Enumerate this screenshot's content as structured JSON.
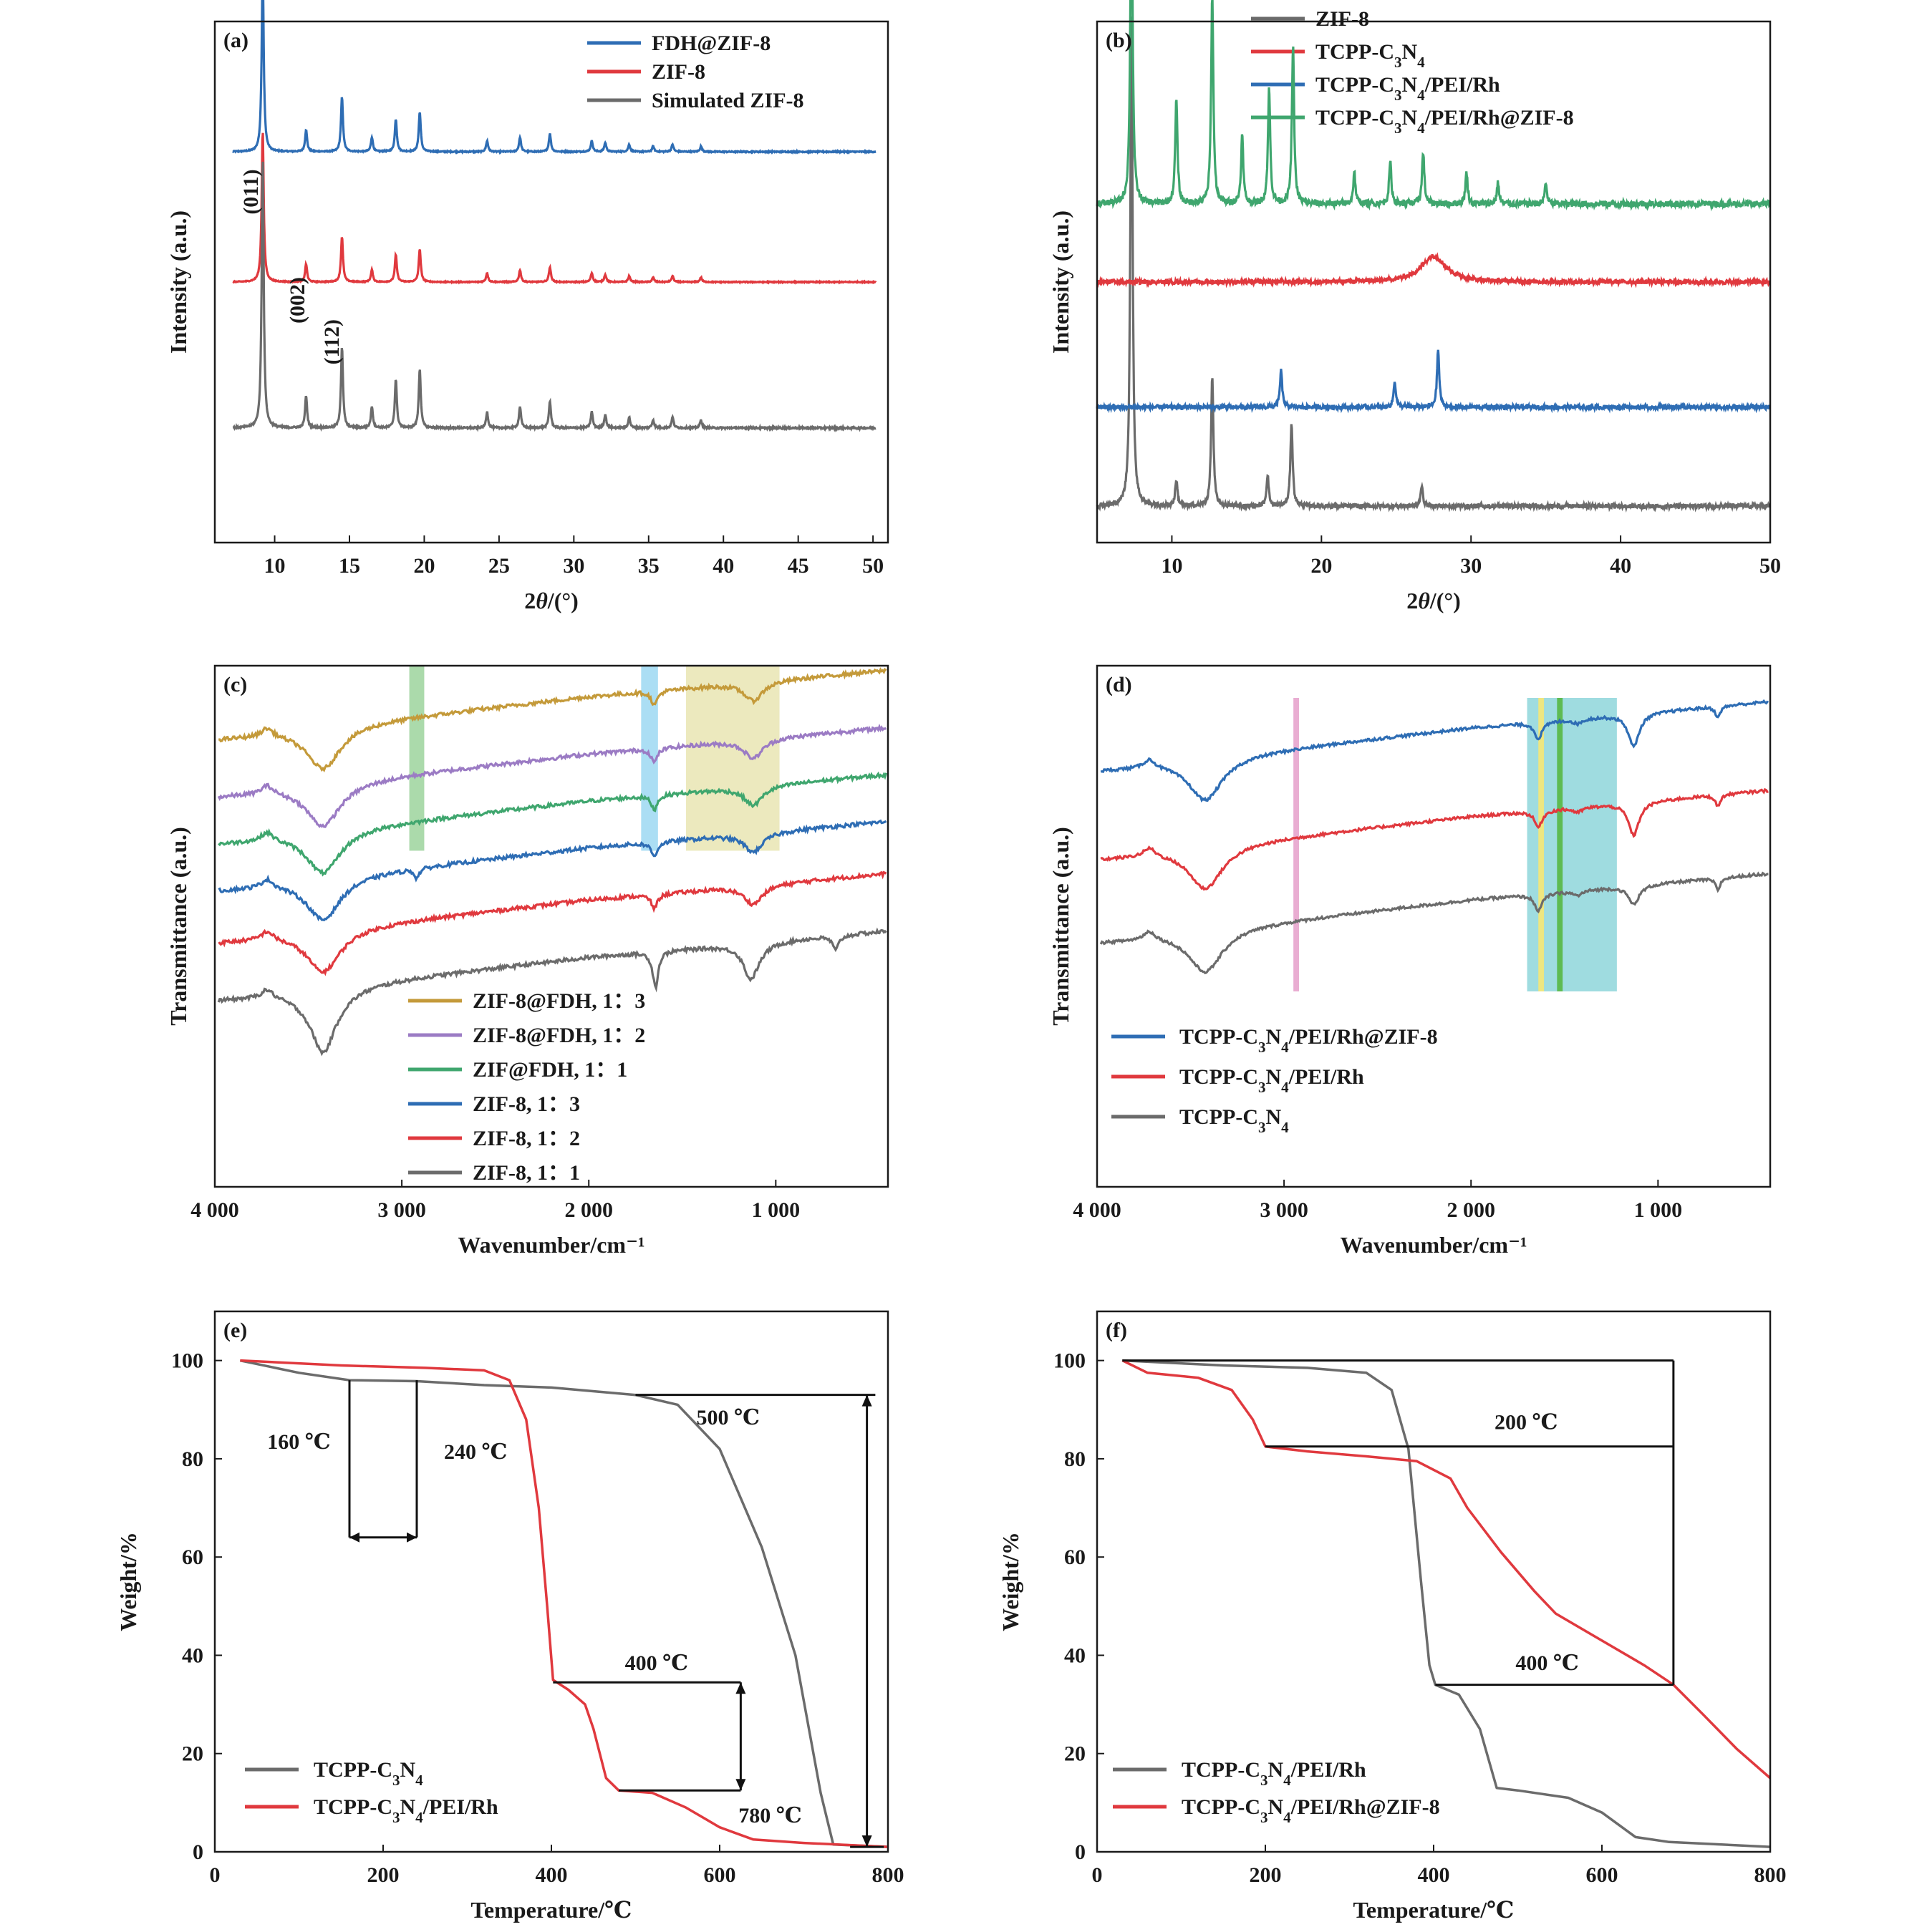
{
  "colors": {
    "blue": "#2e6db4",
    "red": "#e0393e",
    "gray": "#6b6b6b",
    "green": "#3fa66e",
    "gold": "#c49a3a",
    "purple": "#9b7bc4",
    "band_green": "#8fce8f",
    "band_blue": "#8fd3f0",
    "band_yellow": "#e6e2a8",
    "band_pink": "#e8a9d0",
    "band_teal": "#7fd0d6",
    "line_yellow": "#f2e67a",
    "line_green": "#5bb84a"
  },
  "chart_data": [
    {
      "panel": "(a)",
      "type": "line",
      "xlabel": "2θ/(°)",
      "ylabel": "Intensity (a.u.)",
      "xlim": [
        6,
        51
      ],
      "xticks": [
        10,
        15,
        20,
        25,
        30,
        35,
        40,
        45,
        50
      ],
      "peaks": [
        [
          9.2,
          1.0
        ],
        [
          12.1,
          0.12
        ],
        [
          14.5,
          0.3
        ],
        [
          16.5,
          0.08
        ],
        [
          18.1,
          0.18
        ],
        [
          19.7,
          0.22
        ],
        [
          24.2,
          0.06
        ],
        [
          26.4,
          0.08
        ],
        [
          28.4,
          0.1
        ],
        [
          31.2,
          0.06
        ],
        [
          32.1,
          0.05
        ],
        [
          33.7,
          0.04
        ],
        [
          35.3,
          0.03
        ],
        [
          36.6,
          0.04
        ],
        [
          38.5,
          0.03
        ]
      ],
      "series": [
        {
          "name": "FDH@ZIF-8",
          "color": "blue",
          "baseline": 0.25,
          "scale": 0.35
        },
        {
          "name": "ZIF-8",
          "color": "red",
          "baseline": 0.5,
          "scale": 0.29
        },
        {
          "name": "Simulated ZIF-8",
          "color": "gray",
          "baseline": 0.78,
          "scale": 0.52
        }
      ],
      "annotations": [
        {
          "text": "(011)",
          "x": 8.4,
          "y": 0.17
        },
        {
          "text": "(002)",
          "x": 11.5,
          "y": 0.3
        },
        {
          "text": "(112)",
          "x": 13.8,
          "y": 0.35
        }
      ]
    },
    {
      "panel": "(b)",
      "type": "line",
      "xlabel": "2θ/(°)",
      "ylabel": "Intensity (a.u.)",
      "xlim": [
        5,
        50
      ],
      "xticks": [
        10,
        20,
        30,
        40,
        50
      ],
      "series": [
        {
          "name": "ZIF-8",
          "color": "gray",
          "baseline": 0.93,
          "peaks": [
            [
              7.3,
              0.95
            ],
            [
              10.3,
              0.05
            ],
            [
              12.7,
              0.25
            ],
            [
              16.4,
              0.06
            ],
            [
              18.0,
              0.16
            ],
            [
              26.7,
              0.04
            ]
          ]
        },
        {
          "name": "TCPP-C3N4",
          "color": "red",
          "baseline": 0.5,
          "peaks": [
            [
              27.5,
              0.05
            ]
          ]
        },
        {
          "name": "TCPP-C3N4/PEI/Rh",
          "color": "blue",
          "baseline": 0.74,
          "peaks": [
            [
              17.3,
              0.07
            ],
            [
              24.9,
              0.05
            ],
            [
              27.8,
              0.11
            ]
          ]
        },
        {
          "name": "TCPP-C3N4/PEI/Rh@ZIF-8",
          "color": "green",
          "baseline": 0.35,
          "peaks": [
            [
              7.3,
              0.65
            ],
            [
              10.3,
              0.2
            ],
            [
              12.7,
              0.4
            ],
            [
              14.7,
              0.13
            ],
            [
              16.5,
              0.22
            ],
            [
              18.1,
              0.3
            ],
            [
              22.2,
              0.06
            ],
            [
              24.6,
              0.08
            ],
            [
              26.8,
              0.1
            ],
            [
              29.7,
              0.06
            ],
            [
              31.8,
              0.04
            ],
            [
              35.0,
              0.04
            ]
          ]
        }
      ]
    },
    {
      "panel": "(c)",
      "type": "line",
      "xlabel": "Wavenumber/cm⁻¹",
      "ylabel": "Transmittance (a.u.)",
      "xlim": [
        4000,
        400
      ],
      "xticks": [
        4000,
        3000,
        2000,
        1000
      ],
      "xticklabels": [
        "4 000",
        "3 000",
        "2 000",
        "1 000"
      ],
      "series": [
        {
          "name": "ZIF-8@FDH, 1：3",
          "color": "gold",
          "baseline": 0.14
        },
        {
          "name": "ZIF-8@FDH, 1：2",
          "color": "purple",
          "baseline": 0.25
        },
        {
          "name": "ZIF@FDH, 1：1",
          "color": "green",
          "baseline": 0.34
        },
        {
          "name": "ZIF-8, 1：3",
          "color": "blue",
          "baseline": 0.43
        },
        {
          "name": "ZIF-8, 1：2",
          "color": "red",
          "baseline": 0.53
        },
        {
          "name": "ZIF-8, 1：1",
          "color": "gray",
          "baseline": 0.64
        }
      ],
      "bands": [
        {
          "from": 2960,
          "to": 2880,
          "color": "band_green"
        },
        {
          "from": 1720,
          "to": 1630,
          "color": "band_blue"
        },
        {
          "from": 1480,
          "to": 980,
          "color": "band_yellow"
        }
      ]
    },
    {
      "panel": "(d)",
      "type": "line",
      "xlabel": "Wavenumber/cm⁻¹",
      "ylabel": "Transmittance (a.u.)",
      "xlim": [
        4000,
        400
      ],
      "xticks": [
        4000,
        3000,
        2000,
        1000
      ],
      "xticklabels": [
        "4 000",
        "3 000",
        "2 000",
        "1 000"
      ],
      "series": [
        {
          "name": "TCPP-C3N4/PEI/Rh@ZIF-8",
          "color": "blue",
          "baseline": 0.2
        },
        {
          "name": "TCPP-C3N4/PEI/Rh",
          "color": "red",
          "baseline": 0.37
        },
        {
          "name": "TCPP-C3N4",
          "color": "gray",
          "baseline": 0.53
        }
      ],
      "bands": [
        {
          "from": 2950,
          "to": 2920,
          "color": "band_pink"
        },
        {
          "from": 1700,
          "to": 1220,
          "color": "band_teal"
        },
        {
          "from": 1640,
          "to": 1610,
          "color": "line_yellow"
        },
        {
          "from": 1540,
          "to": 1510,
          "color": "line_green"
        }
      ]
    },
    {
      "panel": "(e)",
      "type": "line",
      "xlabel": "Temperature/℃",
      "ylabel": "Weight/%",
      "xlim": [
        0,
        800
      ],
      "ylim": [
        0,
        110
      ],
      "xticks": [
        0,
        200,
        400,
        600,
        800
      ],
      "yticks": [
        0,
        20,
        40,
        60,
        80,
        100
      ],
      "series": [
        {
          "name": "TCPP-C3N4",
          "color": "gray",
          "points": [
            [
              30,
              100
            ],
            [
              100,
              97.5
            ],
            [
              160,
              96
            ],
            [
              240,
              95.8
            ],
            [
              320,
              95
            ],
            [
              400,
              94.5
            ],
            [
              500,
              93
            ],
            [
              550,
              91
            ],
            [
              600,
              82
            ],
            [
              650,
              62
            ],
            [
              690,
              40
            ],
            [
              720,
              12
            ],
            [
              735,
              1.5
            ],
            [
              800,
              1
            ]
          ]
        },
        {
          "name": "TCPP-C3N4/PEI/Rh",
          "color": "red",
          "points": [
            [
              30,
              100
            ],
            [
              150,
              99
            ],
            [
              250,
              98.5
            ],
            [
              320,
              98
            ],
            [
              350,
              96
            ],
            [
              370,
              88
            ],
            [
              385,
              70
            ],
            [
              395,
              50
            ],
            [
              402,
              35
            ],
            [
              420,
              33
            ],
            [
              440,
              30
            ],
            [
              450,
              25
            ],
            [
              465,
              15
            ],
            [
              480,
              12.5
            ],
            [
              520,
              12
            ],
            [
              560,
              9
            ],
            [
              600,
              5
            ],
            [
              640,
              2.5
            ],
            [
              700,
              1.8
            ],
            [
              800,
              1
            ]
          ]
        }
      ],
      "annotations": [
        "160 ℃",
        "240 ℃",
        "500 ℃",
        "400 ℃",
        "780 ℃"
      ]
    },
    {
      "panel": "(f)",
      "type": "line",
      "xlabel": "Temperature/℃",
      "ylabel": "Weight/%",
      "xlim": [
        0,
        800
      ],
      "ylim": [
        0,
        110
      ],
      "xticks": [
        0,
        200,
        400,
        600,
        800
      ],
      "yticks": [
        0,
        20,
        40,
        60,
        80,
        100
      ],
      "series": [
        {
          "name": "TCPP-C3N4/PEI/Rh",
          "color": "gray",
          "points": [
            [
              30,
              100
            ],
            [
              150,
              99
            ],
            [
              250,
              98.5
            ],
            [
              320,
              97.5
            ],
            [
              350,
              94
            ],
            [
              370,
              82
            ],
            [
              385,
              55
            ],
            [
              395,
              38
            ],
            [
              402,
              34
            ],
            [
              430,
              32
            ],
            [
              455,
              25
            ],
            [
              475,
              13
            ],
            [
              500,
              12.5
            ],
            [
              560,
              11
            ],
            [
              600,
              8
            ],
            [
              640,
              3
            ],
            [
              680,
              2
            ],
            [
              800,
              1
            ]
          ]
        },
        {
          "name": "TCPP-C3N4/PEI/Rh@ZIF-8",
          "color": "red",
          "points": [
            [
              30,
              100
            ],
            [
              60,
              97.5
            ],
            [
              120,
              96.5
            ],
            [
              160,
              94
            ],
            [
              185,
              88
            ],
            [
              200,
              82.5
            ],
            [
              250,
              81.5
            ],
            [
              320,
              80.5
            ],
            [
              380,
              79.5
            ],
            [
              420,
              76
            ],
            [
              440,
              70
            ],
            [
              480,
              61
            ],
            [
              520,
              53
            ],
            [
              545,
              48.5
            ],
            [
              600,
              43
            ],
            [
              650,
              38
            ],
            [
              685,
              34
            ],
            [
              720,
              28
            ],
            [
              760,
              21
            ],
            [
              800,
              15
            ]
          ]
        }
      ],
      "annotations": [
        "200 ℃",
        "400 ℃"
      ]
    }
  ]
}
